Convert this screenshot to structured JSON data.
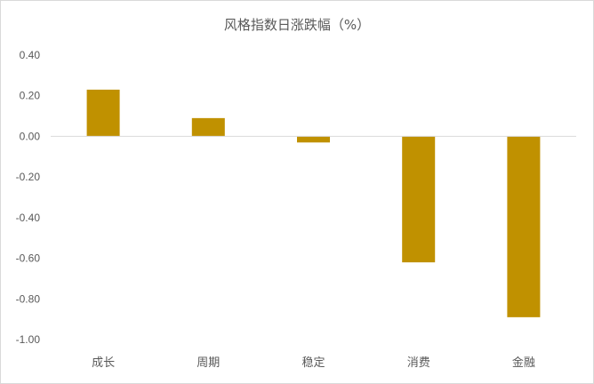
{
  "chart_data": {
    "type": "bar",
    "title": "风格指数日涨跌幅（%）",
    "categories": [
      "成长",
      "周期",
      "稳定",
      "消费",
      "金融"
    ],
    "values": [
      0.23,
      0.09,
      -0.03,
      -0.62,
      -0.89
    ],
    "ylim": [
      -1.0,
      0.4
    ],
    "yticks": [
      "0.40",
      "0.20",
      "0.00",
      "-0.20",
      "-0.40",
      "-0.60",
      "-0.80",
      "-1.00"
    ],
    "grid": false,
    "legend": "none",
    "bar_color": "#C09100",
    "axis_color": "#D9D9D9"
  }
}
